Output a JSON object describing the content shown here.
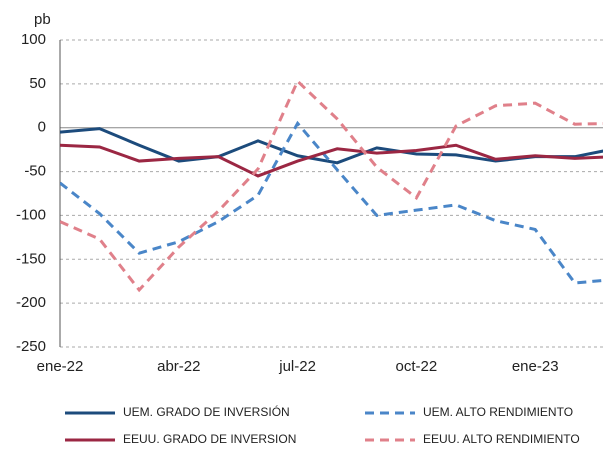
{
  "chart_data": {
    "type": "line",
    "y_unit": "pb",
    "categories": [
      "ene-22",
      null,
      null,
      "abr-22",
      null,
      null,
      "jul-22",
      null,
      null,
      "oct-22",
      null,
      null,
      "ene-23",
      null,
      null
    ],
    "ylim": [
      -250,
      100
    ],
    "yticks": [
      -250,
      -200,
      -150,
      -100,
      -50,
      0,
      50,
      100
    ],
    "grid": true,
    "series": [
      {
        "name": "UEM. GRADO DE INVERSIÓN",
        "color": "#1c4b7c",
        "dash": false,
        "values": [
          -5,
          -1,
          -20,
          -38,
          -33,
          -15,
          -32,
          -40,
          -23,
          -30,
          -31,
          -38,
          -33,
          -33,
          -24
        ]
      },
      {
        "name": "UEM. ALTO RENDIMIENTO",
        "color": "#4a86c8",
        "dash": true,
        "values": [
          -63,
          -98,
          -143,
          -130,
          -107,
          -77,
          5,
          -48,
          -100,
          -94,
          -88,
          -106,
          -116,
          -177,
          -173
        ]
      },
      {
        "name": "EEUU. GRADO DE INVERSION",
        "color": "#9b2743",
        "dash": false,
        "values": [
          -20,
          -22,
          -38,
          -35,
          -33,
          -55,
          -38,
          -24,
          -29,
          -26,
          -20,
          -36,
          -32,
          -35,
          -33
        ]
      },
      {
        "name": "EEUU. ALTO RENDIMIENTO",
        "color": "#e0808a",
        "dash": true,
        "values": [
          -107,
          -127,
          -185,
          -136,
          -95,
          -47,
          53,
          10,
          -45,
          -80,
          2,
          25,
          28,
          4,
          5
        ]
      }
    ]
  }
}
